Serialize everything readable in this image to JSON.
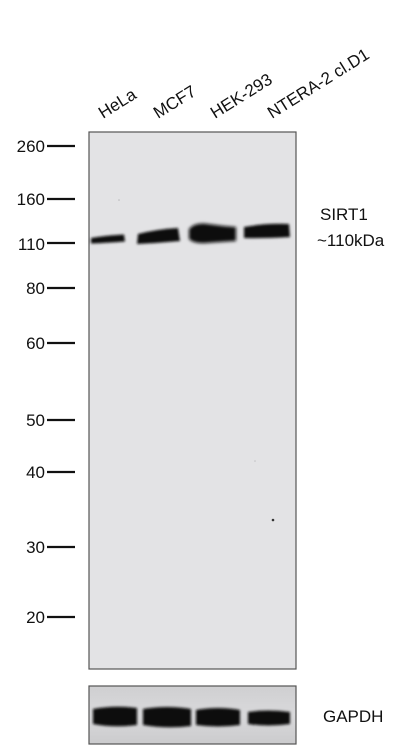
{
  "lanes": [
    "HeLa",
    "MCF7",
    "HEK-293",
    "NTERA-2 cl.D1"
  ],
  "markers": [
    "260",
    "160",
    "110",
    "80",
    "60",
    "50",
    "40",
    "30",
    "20"
  ],
  "target": {
    "name": "SIRT1",
    "size": "~110kDa"
  },
  "loading_control": "GAPDH",
  "colors": {
    "membrane": "#e3e3e5",
    "band": "#101010",
    "text": "#111111",
    "frame": "#555555"
  }
}
